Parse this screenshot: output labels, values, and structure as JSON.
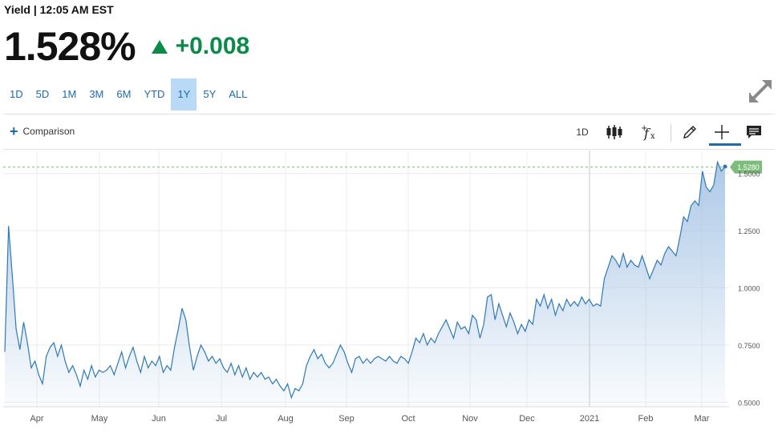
{
  "header": {
    "title": "Yield | 12:05 AM EST",
    "price": "1.528%",
    "change": "+0.008"
  },
  "ranges": [
    {
      "label": "1D",
      "active": false
    },
    {
      "label": "5D",
      "active": false
    },
    {
      "label": "1M",
      "active": false
    },
    {
      "label": "3M",
      "active": false
    },
    {
      "label": "6M",
      "active": false
    },
    {
      "label": "YTD",
      "active": false
    },
    {
      "label": "1Y",
      "active": true
    },
    {
      "label": "5Y",
      "active": false
    },
    {
      "label": "ALL",
      "active": false
    }
  ],
  "toolbar": {
    "comparison_label": "Comparison",
    "interval_label": "1D"
  },
  "colors": {
    "accent": "#1f6aa8",
    "positive": "#0c8a4a",
    "line": "#2f79b5",
    "area_top": "#a9c6e6",
    "current_badge": "#7dbd7a"
  },
  "chart_data": {
    "type": "area",
    "current_value_label": "1.5280",
    "current_value": 1.528,
    "x_tick_labels": [
      "Apr",
      "May",
      "Jun",
      "Jul",
      "Aug",
      "Sep",
      "Oct",
      "Nov",
      "Dec",
      "2021",
      "Feb",
      "Mar"
    ],
    "y_tick_labels": [
      "0.5000",
      "0.7500",
      "1.0000",
      "1.2500",
      "1.5000"
    ],
    "ylim": [
      0.48,
      1.6
    ],
    "grid": true,
    "series": [
      {
        "values": [
          0.72,
          1.27,
          1.05,
          0.82,
          0.73,
          0.85,
          0.76,
          0.65,
          0.68,
          0.62,
          0.58,
          0.7,
          0.74,
          0.76,
          0.7,
          0.75,
          0.68,
          0.63,
          0.66,
          0.62,
          0.57,
          0.64,
          0.6,
          0.66,
          0.61,
          0.64,
          0.63,
          0.64,
          0.66,
          0.62,
          0.67,
          0.72,
          0.65,
          0.7,
          0.74,
          0.68,
          0.63,
          0.7,
          0.65,
          0.68,
          0.66,
          0.7,
          0.63,
          0.66,
          0.64,
          0.74,
          0.82,
          0.91,
          0.86,
          0.74,
          0.64,
          0.7,
          0.75,
          0.72,
          0.68,
          0.7,
          0.67,
          0.69,
          0.65,
          0.63,
          0.67,
          0.62,
          0.66,
          0.61,
          0.65,
          0.6,
          0.63,
          0.61,
          0.63,
          0.6,
          0.61,
          0.58,
          0.6,
          0.57,
          0.55,
          0.58,
          0.52,
          0.56,
          0.55,
          0.58,
          0.66,
          0.7,
          0.73,
          0.69,
          0.71,
          0.67,
          0.65,
          0.67,
          0.71,
          0.75,
          0.72,
          0.67,
          0.63,
          0.69,
          0.7,
          0.67,
          0.69,
          0.67,
          0.69,
          0.7,
          0.69,
          0.68,
          0.7,
          0.68,
          0.67,
          0.7,
          0.69,
          0.67,
          0.72,
          0.78,
          0.76,
          0.8,
          0.75,
          0.78,
          0.76,
          0.8,
          0.83,
          0.86,
          0.82,
          0.78,
          0.85,
          0.82,
          0.83,
          0.8,
          0.88,
          0.86,
          0.78,
          0.84,
          0.96,
          0.97,
          0.86,
          0.93,
          0.88,
          0.83,
          0.89,
          0.85,
          0.8,
          0.84,
          0.81,
          0.86,
          0.84,
          0.95,
          0.92,
          0.97,
          0.91,
          0.95,
          0.88,
          0.93,
          0.9,
          0.95,
          0.92,
          0.94,
          0.92,
          0.96,
          0.93,
          0.95,
          0.92,
          0.93,
          0.92,
          1.04,
          1.09,
          1.14,
          1.12,
          1.09,
          1.15,
          1.09,
          1.12,
          1.1,
          1.09,
          1.14,
          1.09,
          1.04,
          1.08,
          1.12,
          1.1,
          1.15,
          1.18,
          1.16,
          1.14,
          1.22,
          1.31,
          1.29,
          1.36,
          1.38,
          1.36,
          1.51,
          1.44,
          1.42,
          1.45,
          1.55,
          1.51,
          1.53
        ]
      }
    ]
  }
}
